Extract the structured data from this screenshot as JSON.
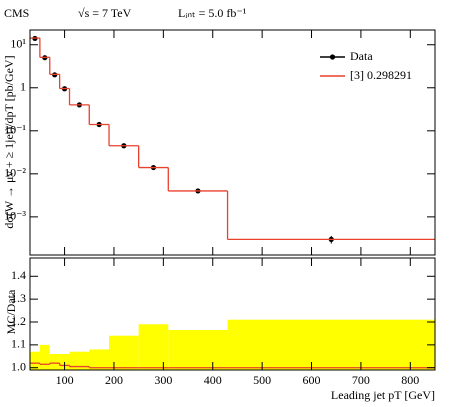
{
  "chart_data": [
    {
      "type": "histogram",
      "annotations": [
        "CMS",
        "√s = 7 TeV",
        "Lᵢₙₜ = 5.0 fb⁻¹"
      ],
      "ylabel": "dσ(W → μν + ≥ 1jet)/dpT [pb/GeV]",
      "bins": [
        30,
        50,
        70,
        90,
        110,
        150,
        190,
        250,
        310,
        430,
        850
      ],
      "series": [
        {
          "name": "Data",
          "color": "#000000",
          "style": "points",
          "values": [
            14,
            5,
            2,
            0.95,
            0.4,
            0.14,
            0.045,
            0.014,
            0.004,
            0.0003
          ],
          "errors": [
            0.5,
            0.2,
            0.08,
            0.04,
            0.015,
            0.006,
            0.002,
            0.0008,
            0.0003,
            6e-05
          ]
        },
        {
          "name": "[3] 0.298291",
          "color": "#e8412c",
          "style": "step",
          "values": [
            14.3,
            5.1,
            2.05,
            0.96,
            0.4,
            0.14,
            0.045,
            0.014,
            0.004,
            0.0003
          ]
        }
      ],
      "xlim": [
        30,
        850
      ],
      "xticks": [
        100,
        200,
        300,
        400,
        500,
        600,
        700,
        800
      ],
      "log_y": true,
      "ylim": [
        0.00013,
        22
      ],
      "yticks": [
        {
          "value": 10,
          "label": "10¹"
        },
        1,
        {
          "value": 0.1,
          "label": "10⁻¹"
        },
        {
          "value": 0.01,
          "label": "10⁻²"
        },
        {
          "value": 0.001,
          "label": "10⁻³"
        }
      ],
      "legend": "upper right"
    },
    {
      "type": "histogram",
      "ylabel": "MC/Data",
      "xlabel": "Leading jet pT [GeV]",
      "bins": [
        30,
        50,
        70,
        90,
        110,
        150,
        190,
        250,
        310,
        430,
        850
      ],
      "series": [
        {
          "color": "#ffff00",
          "style": "band",
          "values": [
            1.07,
            1.1,
            1.06,
            1.06,
            1.07,
            1.08,
            1.14,
            1.19,
            1.165,
            1.21
          ]
        },
        {
          "color": "#e8412c",
          "style": "step",
          "values": [
            1.02,
            1.015,
            1.02,
            1.01,
            1.005,
            1.0,
            1.0,
            1.0,
            1.0,
            1.0
          ]
        }
      ],
      "xlim": [
        30,
        850
      ],
      "xticks": [
        100,
        200,
        300,
        400,
        500,
        600,
        700,
        800
      ],
      "ylim": [
        0.99,
        1.48
      ],
      "yticks": [
        {
          "value": 1,
          "label": "1.0"
        },
        1.1,
        1.2,
        1.3,
        1.4
      ]
    }
  ]
}
